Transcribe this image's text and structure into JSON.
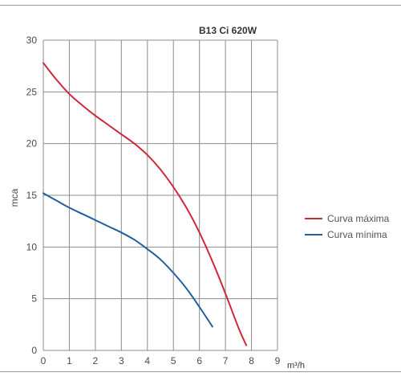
{
  "chart_data": {
    "type": "line",
    "title": "B13 Ci 620W",
    "xlabel": "m³/h",
    "ylabel": "mca",
    "xlim": [
      0,
      9
    ],
    "ylim": [
      0,
      30
    ],
    "x_ticks": [
      "0",
      "1",
      "2",
      "3",
      "4",
      "5",
      "6",
      "7",
      "8",
      "9"
    ],
    "y_ticks": [
      "0",
      "5",
      "10",
      "15",
      "20",
      "25",
      "30"
    ],
    "grid": true,
    "legend_position": "right",
    "series": [
      {
        "name": "Curva máxima",
        "color": "#d0283c",
        "x": [
          0,
          0.5,
          1,
          1.5,
          2,
          2.5,
          3,
          3.5,
          4,
          4.5,
          5,
          5.5,
          6,
          6.5,
          7,
          7.5,
          7.8
        ],
        "y": [
          27.8,
          26.2,
          24.8,
          23.7,
          22.7,
          21.8,
          20.9,
          20.0,
          18.9,
          17.5,
          15.8,
          13.8,
          11.4,
          8.6,
          5.5,
          2.2,
          0.5
        ]
      },
      {
        "name": "Curva mínima",
        "color": "#1f5fa0",
        "x": [
          0,
          0.5,
          1,
          1.5,
          2,
          2.5,
          3,
          3.5,
          4,
          4.5,
          5,
          5.5,
          6,
          6.5
        ],
        "y": [
          15.2,
          14.5,
          13.8,
          13.2,
          12.6,
          12.0,
          11.4,
          10.7,
          9.8,
          8.8,
          7.5,
          6.0,
          4.2,
          2.3
        ]
      }
    ]
  }
}
